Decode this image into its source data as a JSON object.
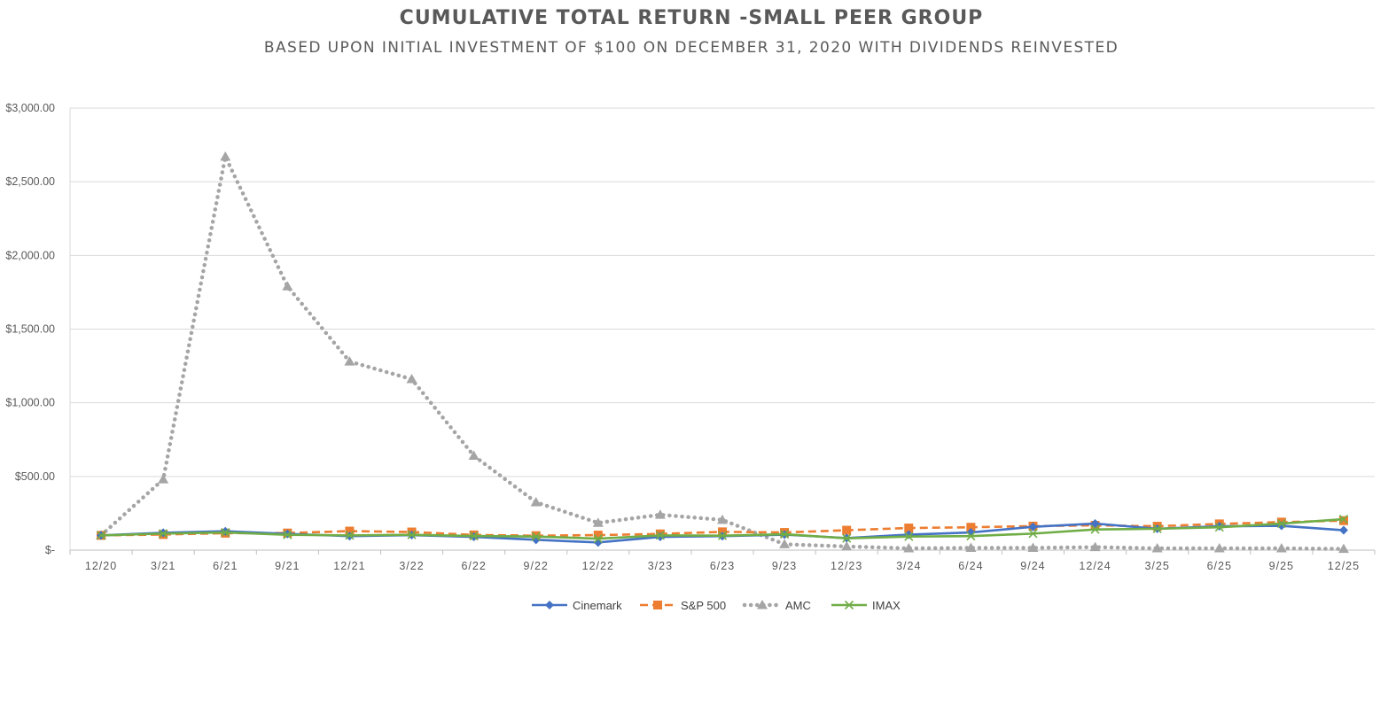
{
  "chart_data": {
    "type": "line",
    "title": "CUMULATIVE TOTAL RETURN -SMALL PEER GROUP",
    "subtitle": "BASED UPON INITIAL INVESTMENT OF $100 ON DECEMBER 31, 2020 WITH DIVIDENDS REINVESTED",
    "xlabel": "",
    "ylabel": "",
    "ylim": [
      0,
      3000
    ],
    "grid": true,
    "legend_position": "bottom",
    "categories": [
      "12/20",
      "3/21",
      "6/21",
      "9/21",
      "12/21",
      "3/22",
      "6/22",
      "9/22",
      "12/22",
      "3/23",
      "6/23",
      "9/23",
      "12/23",
      "3/24",
      "6/24",
      "9/24",
      "12/24",
      "3/25",
      "6/25",
      "9/25",
      "12/25"
    ],
    "y_ticks": [
      {
        "value": 0,
        "label": "$-"
      },
      {
        "value": 500,
        "label": "$500.00"
      },
      {
        "value": 1000,
        "label": "$1,000.00"
      },
      {
        "value": 1500,
        "label": "$1,500.00"
      },
      {
        "value": 2000,
        "label": "$2,000.00"
      },
      {
        "value": 2500,
        "label": "$2,500.00"
      },
      {
        "value": 3000,
        "label": "$3,000.00"
      }
    ],
    "series": [
      {
        "name": "Cinemark",
        "color": "#4472C4",
        "dash": "solid",
        "marker": "diamond",
        "values": [
          100,
          118,
          128,
          110,
          95,
          102,
          90,
          70,
          52,
          90,
          95,
          105,
          82,
          105,
          120,
          158,
          180,
          145,
          162,
          165,
          135
        ]
      },
      {
        "name": "S&P 500",
        "color": "#ED7D31",
        "dash": "dash",
        "marker": "square",
        "values": [
          100,
          106,
          115,
          116,
          129,
          123,
          103,
          98,
          102,
          110,
          124,
          120,
          135,
          150,
          155,
          163,
          168,
          162,
          178,
          190,
          200
        ]
      },
      {
        "name": "AMC",
        "color": "#A5A5A5",
        "dash": "dot",
        "marker": "triangle",
        "values": [
          100,
          480,
          2670,
          1790,
          1280,
          1160,
          640,
          325,
          185,
          240,
          205,
          40,
          25,
          12,
          15,
          15,
          20,
          12,
          12,
          12,
          8
        ]
      },
      {
        "name": "IMAX",
        "color": "#70AD47",
        "dash": "solid",
        "marker": "x",
        "values": [
          100,
          112,
          120,
          104,
          100,
          104,
          96,
          92,
          78,
          100,
          98,
          108,
          80,
          92,
          95,
          112,
          140,
          145,
          155,
          180,
          210
        ]
      }
    ]
  }
}
